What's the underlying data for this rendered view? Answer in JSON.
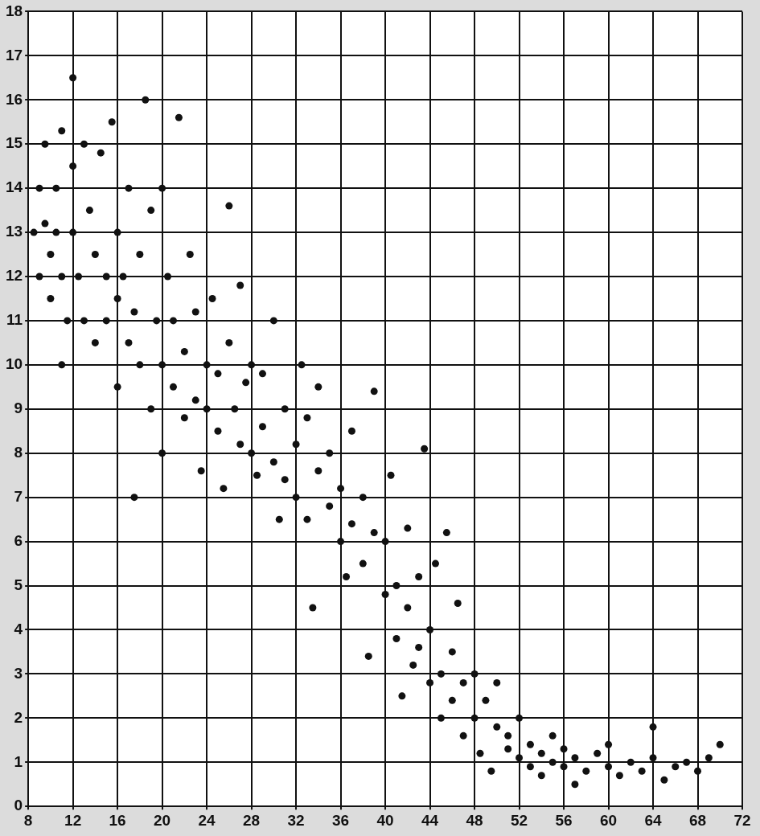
{
  "chart_data": {
    "type": "scatter",
    "xlim": [
      8,
      72
    ],
    "ylim": [
      0,
      18
    ],
    "xticks": [
      8,
      12,
      16,
      20,
      24,
      28,
      32,
      36,
      40,
      44,
      48,
      52,
      56,
      60,
      64,
      68,
      72
    ],
    "yticks": [
      0,
      1,
      2,
      3,
      4,
      5,
      6,
      7,
      8,
      9,
      10,
      11,
      12,
      13,
      14,
      15,
      16,
      17,
      18
    ],
    "grid": true,
    "marker": "circle",
    "legend": false,
    "series": [
      {
        "color": "#111111",
        "x": [
          8.5,
          9,
          9,
          9.5,
          9.5,
          10,
          10,
          10.5,
          10.5,
          11,
          11,
          11,
          11.5,
          12,
          12,
          12,
          12.5,
          13,
          13,
          13.5,
          14,
          14,
          14.5,
          15,
          15,
          15.5,
          16,
          16,
          16,
          16.5,
          17,
          17,
          17.5,
          17.5,
          18,
          18,
          18.5,
          19,
          19,
          19.5,
          20,
          20,
          20,
          20.5,
          21,
          21,
          21.5,
          22,
          22,
          22.5,
          23,
          23,
          23.5,
          24,
          24,
          24.5,
          25,
          25,
          25.5,
          26,
          26,
          26.5,
          27,
          27,
          27.5,
          28,
          28,
          28.5,
          29,
          29,
          30,
          30,
          30.5,
          31,
          31,
          32,
          32,
          32.5,
          33,
          33,
          33.5,
          34,
          34,
          35,
          35,
          36,
          36,
          36.5,
          37,
          37,
          38,
          38,
          38.5,
          39,
          39,
          40,
          40,
          40.5,
          41,
          41,
          41.5,
          42,
          42,
          42.5,
          43,
          43,
          43.5,
          44,
          44,
          44.5,
          45,
          45,
          45.5,
          46,
          46,
          46.5,
          47,
          47,
          48,
          48,
          48.5,
          49,
          49.5,
          50,
          50,
          51,
          51,
          52,
          52,
          53,
          53,
          54,
          54,
          55,
          55,
          56,
          56,
          57,
          57,
          58,
          59,
          60,
          60,
          61,
          62,
          63,
          64,
          64,
          65,
          66,
          67,
          68,
          69,
          70
        ],
        "values": [
          13,
          14,
          12,
          15,
          13.2,
          11.5,
          12.5,
          14,
          13,
          12,
          10,
          15.3,
          11,
          16.5,
          13,
          14.5,
          12,
          11,
          15,
          13.5,
          12.5,
          10.5,
          14.8,
          12,
          11,
          15.5,
          13,
          11.5,
          9.5,
          12,
          10.5,
          14,
          7,
          11.2,
          12.5,
          10,
          16,
          13.5,
          9,
          11,
          14,
          10,
          8,
          12,
          9.5,
          11,
          15.6,
          10.3,
          8.8,
          12.5,
          9.2,
          11.2,
          7.6,
          10,
          9,
          11.5,
          8.5,
          9.8,
          7.2,
          10.5,
          13.6,
          9,
          8.2,
          11.8,
          9.6,
          8,
          10,
          7.5,
          9.8,
          8.6,
          11,
          7.8,
          6.5,
          9,
          7.4,
          8.2,
          7,
          10,
          6.5,
          8.8,
          4.5,
          7.6,
          9.5,
          6.8,
          8,
          6,
          7.2,
          5.2,
          8.5,
          6.4,
          7,
          5.5,
          3.4,
          9.4,
          6.2,
          4.8,
          6,
          7.5,
          5,
          3.8,
          2.5,
          4.5,
          6.3,
          3.2,
          5.2,
          3.6,
          8.1,
          4,
          2.8,
          5.5,
          3,
          2,
          6.2,
          3.5,
          2.4,
          4.6,
          2.8,
          1.6,
          3,
          2,
          1.2,
          2.4,
          0.8,
          1.8,
          2.8,
          1.3,
          1.6,
          1.1,
          2,
          0.9,
          1.4,
          1.2,
          0.7,
          1,
          1.6,
          0.9,
          1.3,
          0.5,
          1.1,
          0.8,
          1.2,
          0.9,
          1.4,
          0.7,
          1,
          0.8,
          1.1,
          1.8,
          0.6,
          0.9,
          1,
          0.8,
          1.1,
          1.4
        ]
      }
    ]
  }
}
